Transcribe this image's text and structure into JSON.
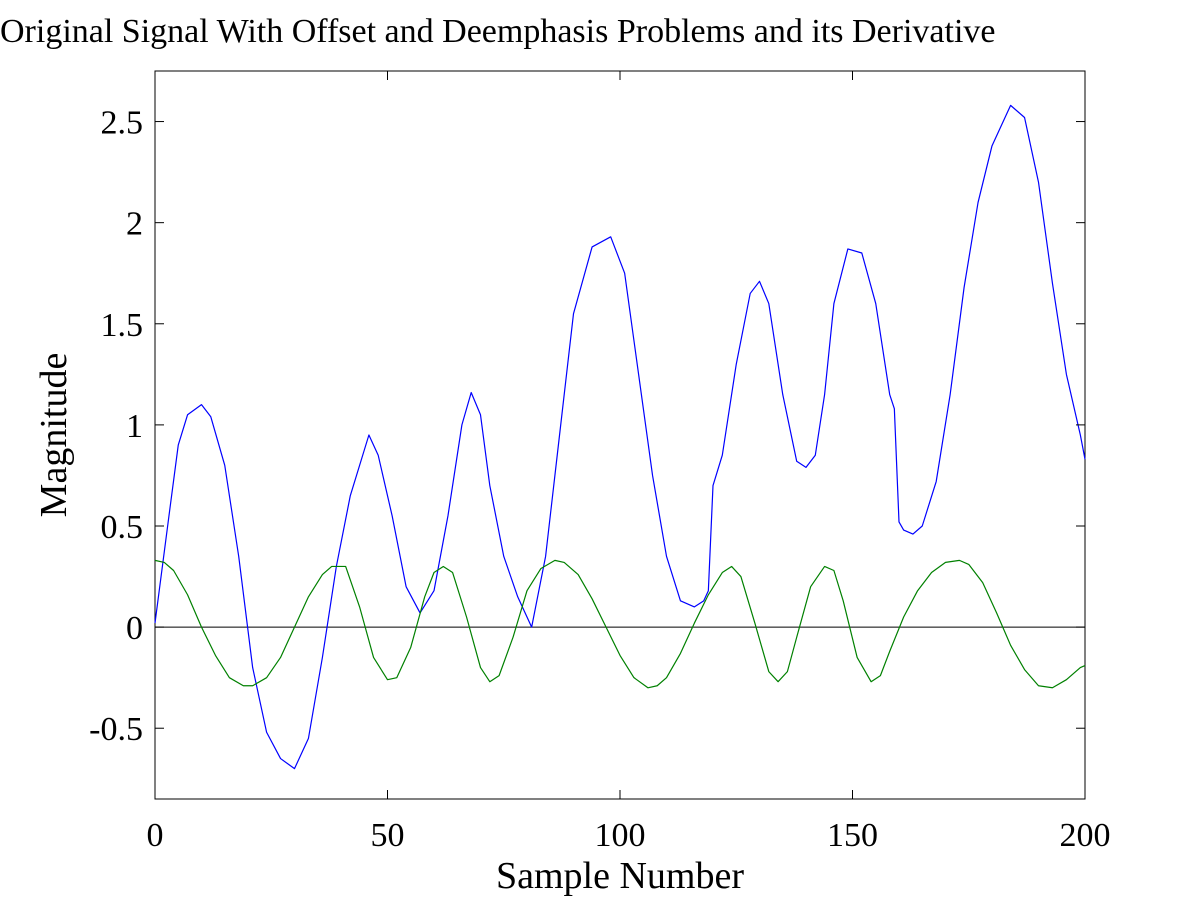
{
  "chart_data": {
    "type": "line",
    "title": "Original Signal With Offset and Deemphasis Problems and its Derivative",
    "xlabel": "Sample Number",
    "ylabel": "Magnitude",
    "xlim": [
      0,
      200
    ],
    "ylim": [
      -0.85,
      2.75
    ],
    "xticks": [
      0,
      50,
      100,
      150,
      200
    ],
    "xtick_labels": [
      "0",
      "50",
      "100",
      "150",
      "200"
    ],
    "yticks": [
      -0.5,
      0,
      0.5,
      1,
      1.5,
      2,
      2.5
    ],
    "ytick_labels": [
      "-0.5",
      "0",
      "0.5",
      "1",
      "1.5",
      "2",
      "2.5"
    ],
    "grid": false,
    "legend": false,
    "reference_line": {
      "y": 0,
      "color": "#000000"
    },
    "series": [
      {
        "color": "#0000ff",
        "x": [
          0,
          3,
          5,
          7,
          10,
          12,
          15,
          18,
          21,
          24,
          27,
          30,
          33,
          36,
          39,
          42,
          46,
          48,
          51,
          54,
          57,
          60,
          63,
          66,
          68,
          70,
          72,
          75,
          78,
          81,
          84,
          87,
          90,
          94,
          98,
          101,
          104,
          107,
          110,
          113,
          116,
          118,
          119,
          120,
          122,
          125,
          128,
          130,
          132,
          135,
          138,
          140,
          142,
          144,
          146,
          149,
          152,
          155,
          158,
          159,
          160,
          161,
          163,
          165,
          168,
          171,
          174,
          177,
          180,
          184,
          187,
          190,
          193,
          196,
          199,
          200
        ],
        "y": [
          0.02,
          0.55,
          0.9,
          1.05,
          1.1,
          1.04,
          0.8,
          0.35,
          -0.2,
          -0.52,
          -0.65,
          -0.7,
          -0.55,
          -0.15,
          0.3,
          0.65,
          0.95,
          0.85,
          0.55,
          0.2,
          0.07,
          0.18,
          0.55,
          1.0,
          1.16,
          1.05,
          0.7,
          0.35,
          0.15,
          0.0,
          0.35,
          0.95,
          1.55,
          1.88,
          1.93,
          1.75,
          1.25,
          0.75,
          0.35,
          0.13,
          0.1,
          0.13,
          0.18,
          0.7,
          0.85,
          1.3,
          1.65,
          1.71,
          1.6,
          1.15,
          0.82,
          0.79,
          0.85,
          1.15,
          1.6,
          1.87,
          1.85,
          1.6,
          1.15,
          1.08,
          0.52,
          0.48,
          0.46,
          0.5,
          0.72,
          1.15,
          1.68,
          2.1,
          2.38,
          2.58,
          2.52,
          2.2,
          1.7,
          1.25,
          0.95,
          0.83
        ]
      },
      {
        "color": "#008000",
        "x": [
          0,
          2,
          4,
          7,
          10,
          13,
          16,
          19,
          21,
          24,
          27,
          30,
          33,
          36,
          38,
          41,
          44,
          47,
          50,
          52,
          55,
          58,
          60,
          62,
          64,
          67,
          70,
          72,
          74,
          77,
          80,
          83,
          86,
          88,
          91,
          94,
          97,
          100,
          103,
          106,
          108,
          110,
          113,
          116,
          119,
          122,
          124,
          126,
          129,
          132,
          134,
          136,
          138,
          141,
          144,
          146,
          148,
          151,
          154,
          156,
          158,
          161,
          164,
          167,
          170,
          173,
          175,
          178,
          181,
          184,
          187,
          190,
          193,
          196,
          199,
          200
        ],
        "y": [
          0.33,
          0.32,
          0.28,
          0.16,
          0.0,
          -0.14,
          -0.25,
          -0.29,
          -0.29,
          -0.25,
          -0.15,
          0.0,
          0.15,
          0.26,
          0.3,
          0.3,
          0.1,
          -0.15,
          -0.26,
          -0.25,
          -0.1,
          0.15,
          0.27,
          0.3,
          0.27,
          0.05,
          -0.2,
          -0.27,
          -0.24,
          -0.05,
          0.18,
          0.29,
          0.33,
          0.32,
          0.26,
          0.14,
          0.0,
          -0.14,
          -0.25,
          -0.3,
          -0.29,
          -0.25,
          -0.13,
          0.02,
          0.16,
          0.27,
          0.3,
          0.25,
          0.02,
          -0.22,
          -0.27,
          -0.22,
          -0.05,
          0.2,
          0.3,
          0.28,
          0.13,
          -0.15,
          -0.27,
          -0.24,
          -0.12,
          0.05,
          0.18,
          0.27,
          0.32,
          0.33,
          0.31,
          0.22,
          0.07,
          -0.09,
          -0.21,
          -0.29,
          -0.3,
          -0.26,
          -0.2,
          -0.19
        ]
      }
    ]
  }
}
